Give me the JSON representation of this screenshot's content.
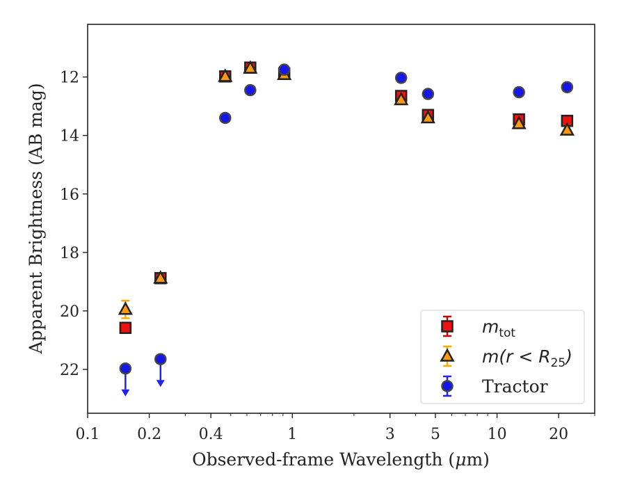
{
  "chart_data": {
    "type": "scatter",
    "title": "",
    "xlabel_prefix": "Observed-frame Wavelength (",
    "xlabel_unit_greek": "μ",
    "xlabel_suffix": "m)",
    "ylabel": "Apparent Brightness (AB mag)",
    "x_scale": "log",
    "x_range": [
      0.1,
      30
    ],
    "y_range": [
      23.5,
      10.2
    ],
    "y_inverted": true,
    "x_ticks": [
      0.1,
      0.2,
      0.4,
      1,
      3,
      5,
      10,
      20
    ],
    "x_tick_labels": [
      "0.1",
      "0.2",
      "0.4",
      "1",
      "3",
      "5",
      "10",
      "20"
    ],
    "y_ticks": [
      12,
      14,
      16,
      18,
      20,
      22
    ],
    "y_tick_labels": [
      "12",
      "14",
      "16",
      "18",
      "20",
      "22"
    ],
    "grid": false,
    "legend_position": "bottom-right",
    "series": [
      {
        "key": "mtot",
        "legend_base": "m",
        "legend_sub": "tot",
        "marker": "square",
        "color": "#ee1111",
        "errcolor": "#cc0000",
        "points": [
          {
            "x": 0.153,
            "y": 20.58
          },
          {
            "x": 0.227,
            "y": 18.88
          },
          {
            "x": 0.47,
            "y": 11.98
          },
          {
            "x": 0.623,
            "y": 11.68
          },
          {
            "x": 0.913,
            "y": 11.88
          },
          {
            "x": 3.4,
            "y": 12.65
          },
          {
            "x": 4.6,
            "y": 13.3
          },
          {
            "x": 12.8,
            "y": 13.45
          },
          {
            "x": 22.0,
            "y": 13.5
          }
        ]
      },
      {
        "key": "mr25",
        "legend_base": "m(r < R",
        "legend_sub": "25",
        "legend_tail": ")",
        "marker": "triangle",
        "color": "#ff9a10",
        "errcolor": "#ffaa00",
        "points": [
          {
            "x": 0.153,
            "y": 19.95,
            "err": 0.3
          },
          {
            "x": 0.227,
            "y": 18.88
          },
          {
            "x": 0.47,
            "y": 11.98
          },
          {
            "x": 0.623,
            "y": 11.7
          },
          {
            "x": 0.913,
            "y": 11.92
          },
          {
            "x": 3.4,
            "y": 12.78
          },
          {
            "x": 4.6,
            "y": 13.4
          },
          {
            "x": 12.8,
            "y": 13.6
          },
          {
            "x": 22.0,
            "y": 13.82
          }
        ]
      },
      {
        "key": "tractor",
        "legend_label": "Tractor",
        "marker": "circle",
        "color": "#1515ee",
        "errcolor": "#2222ee",
        "points": [
          {
            "x": 0.153,
            "y": 21.97,
            "upper_limit": true
          },
          {
            "x": 0.227,
            "y": 21.65,
            "upper_limit": true
          },
          {
            "x": 0.47,
            "y": 13.4
          },
          {
            "x": 0.623,
            "y": 12.45
          },
          {
            "x": 0.913,
            "y": 11.75
          },
          {
            "x": 3.4,
            "y": 12.03
          },
          {
            "x": 4.6,
            "y": 12.58
          },
          {
            "x": 12.8,
            "y": 12.52
          },
          {
            "x": 22.0,
            "y": 12.35
          }
        ]
      }
    ]
  }
}
